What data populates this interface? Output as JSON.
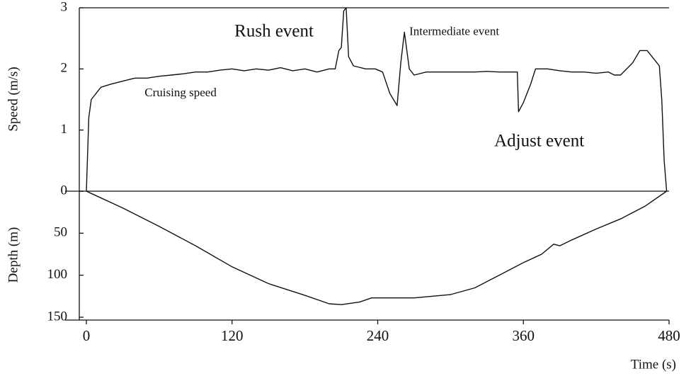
{
  "chart_data": [
    {
      "type": "line",
      "ylabel": "Speed (m/s)",
      "color": "#111111",
      "x": [
        0,
        2,
        4,
        8,
        12,
        20,
        30,
        40,
        50,
        60,
        70,
        80,
        90,
        100,
        110,
        120,
        130,
        140,
        150,
        160,
        170,
        180,
        190,
        200,
        205,
        208,
        210,
        212,
        214,
        216,
        220,
        230,
        238,
        244,
        250,
        256,
        259,
        262,
        266,
        270,
        280,
        290,
        300,
        310,
        320,
        330,
        340,
        350,
        355,
        356,
        360,
        366,
        370,
        380,
        390,
        400,
        410,
        420,
        430,
        435,
        440,
        450,
        456,
        462,
        466,
        470,
        472,
        474,
        476,
        478
      ],
      "values": [
        0,
        1.2,
        1.5,
        1.6,
        1.7,
        1.75,
        1.8,
        1.85,
        1.85,
        1.88,
        1.9,
        1.92,
        1.95,
        1.95,
        1.98,
        2.0,
        1.97,
        2.0,
        1.98,
        2.02,
        1.97,
        2.0,
        1.95,
        2.0,
        2.0,
        2.3,
        2.35,
        2.95,
        3.0,
        2.2,
        2.05,
        2.0,
        2.0,
        1.95,
        1.6,
        1.4,
        2.1,
        2.6,
        2.0,
        1.9,
        1.95,
        1.95,
        1.95,
        1.95,
        1.95,
        1.96,
        1.95,
        1.95,
        1.95,
        1.3,
        1.45,
        1.75,
        2.0,
        2.0,
        1.97,
        1.95,
        1.95,
        1.93,
        1.95,
        1.9,
        1.9,
        2.1,
        2.3,
        2.3,
        2.2,
        2.1,
        2.05,
        1.5,
        0.5,
        0
      ],
      "xlim": [
        0,
        480
      ],
      "ylim": [
        0,
        3
      ],
      "yticks": [
        0,
        1,
        2,
        3
      ],
      "annotations": [
        {
          "text": "Rush event",
          "x": 122,
          "y": 2.6,
          "size": "large"
        },
        {
          "text": "Intermediate event",
          "x": 266,
          "y": 2.6,
          "size": "small"
        },
        {
          "text": "Cruising speed",
          "x": 48,
          "y": 1.6,
          "size": "small"
        },
        {
          "text": "Adjust event",
          "x": 336,
          "y": 0.8,
          "size": "large"
        }
      ]
    },
    {
      "type": "line",
      "ylabel": "Depth (m)",
      "xlabel": "Time (s)",
      "color": "#111111",
      "inverted": true,
      "x": [
        0,
        30,
        60,
        90,
        120,
        150,
        180,
        200,
        210,
        225,
        235,
        250,
        270,
        300,
        320,
        340,
        360,
        375,
        385,
        390,
        400,
        420,
        440,
        460,
        478
      ],
      "values": [
        0,
        20,
        42,
        65,
        90,
        110,
        124,
        134,
        135,
        132,
        127,
        127,
        127,
        123,
        115,
        100,
        85,
        75,
        63,
        65,
        58,
        45,
        33,
        18,
        0
      ],
      "xlim": [
        0,
        480
      ],
      "ylim": [
        0,
        150
      ],
      "yticks": [
        0,
        50,
        100,
        150
      ],
      "xticks": [
        0,
        120,
        240,
        360,
        480
      ]
    }
  ]
}
